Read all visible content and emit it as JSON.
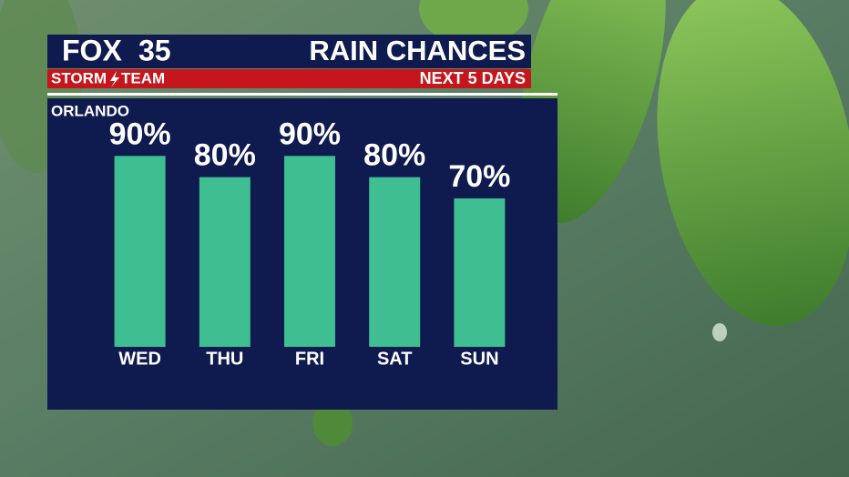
{
  "logo": {
    "network": "FOX",
    "channel": "35",
    "team_left": "STORM",
    "team_right": "TEAM"
  },
  "chart_data": {
    "type": "bar",
    "title": "RAIN CHANCES",
    "subtitle": "NEXT 5 DAYS",
    "location": "ORLANDO",
    "categories": [
      "WED",
      "THU",
      "FRI",
      "SAT",
      "SUN"
    ],
    "values": [
      90,
      80,
      90,
      80,
      70
    ],
    "value_labels": [
      "90%",
      "80%",
      "90%",
      "80%",
      "70%"
    ],
    "color": "#3fbf91",
    "ylim": [
      0,
      100
    ]
  }
}
